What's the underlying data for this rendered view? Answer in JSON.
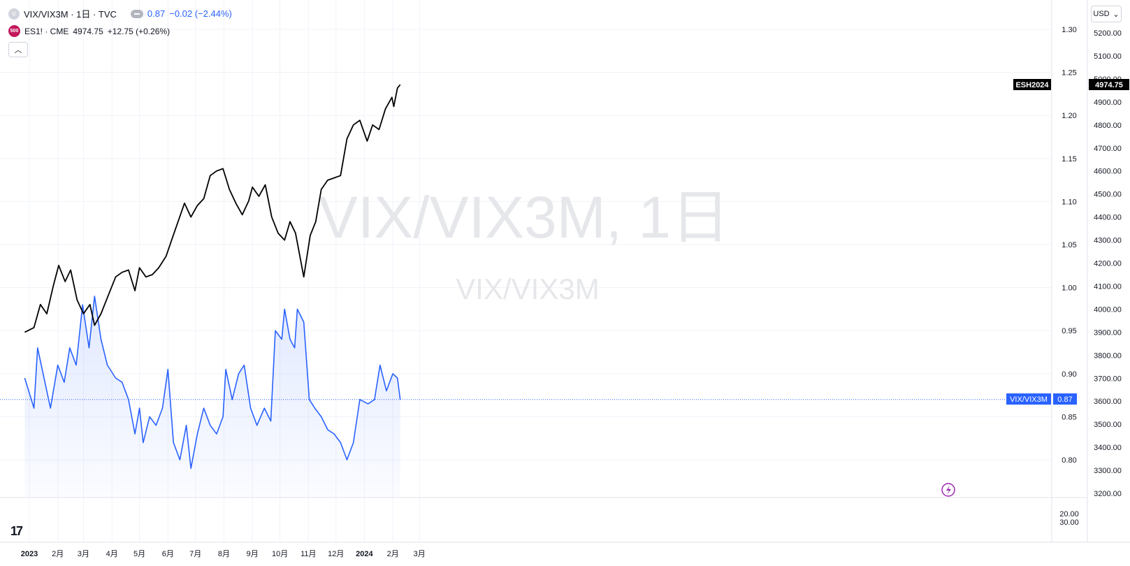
{
  "legend": {
    "main_symbol": "VIX/VIX3M · 1日 · TVC",
    "main_icon": "V",
    "main_value": "0.87",
    "main_change": "−0.02 (−2.44%)",
    "compare_icon": "500",
    "compare_symbol": "ES1! · CME",
    "compare_value": "4974.75",
    "compare_change": "+12.75 (+0.26%)"
  },
  "currency_button": "USD",
  "watermark": {
    "main": "VIX/VIX3M, 1日",
    "sub": "VIX/VIX3M"
  },
  "labels": {
    "es_tag": "ESH2024",
    "es_price": "4974.75",
    "vix_tag": "VIX/VIX3M",
    "vix_price": "0.87"
  },
  "tv_logo": "17",
  "colors": {
    "vix_line": "#2962ff",
    "es_line": "#000000",
    "grid": "#f0f3fa"
  },
  "chart_data": {
    "type": "line",
    "x_ticks": [
      "2023",
      "2月",
      "3月",
      "4月",
      "5月",
      "6月",
      "7月",
      "8月",
      "9月",
      "10月",
      "11月",
      "12月",
      "2024",
      "2月",
      "3月"
    ],
    "x_tick_dates": [
      "2023-01-01",
      "2023-02-01",
      "2023-03-01",
      "2023-04-01",
      "2023-05-01",
      "2023-06-01",
      "2023-07-01",
      "2023-08-01",
      "2023-09-01",
      "2023-10-01",
      "2023-11-01",
      "2023-12-01",
      "2024-01-01",
      "2024-02-01",
      "2024-03-01"
    ],
    "y_left_ticks": [
      "1.30",
      "1.25",
      "1.20",
      "1.15",
      "1.10",
      "1.05",
      "1.00",
      "0.95",
      "0.90",
      "0.85",
      "0.80"
    ],
    "y_left_range": [
      0.8,
      1.3
    ],
    "y_right_ticks": [
      "5200.00",
      "5100.00",
      "5000.00",
      "4900.00",
      "4800.00",
      "4700.00",
      "4600.00",
      "4500.00",
      "4400.00",
      "4300.00",
      "4200.00",
      "4100.00",
      "4000.00",
      "3900.00",
      "3800.00",
      "3700.00",
      "3600.00",
      "3500.00",
      "3400.00",
      "3300.00",
      "3200.00"
    ],
    "y_right_range": [
      3200,
      5200
    ],
    "lower_pane_ticks": [
      "20.00",
      "30.00"
    ],
    "series": [
      {
        "name": "VIX/VIX3M",
        "axis": "left",
        "points": [
          [
            "2022-12-27",
            0.895
          ],
          [
            "2023-01-06",
            0.86
          ],
          [
            "2023-01-10",
            0.93
          ],
          [
            "2023-01-18",
            0.89
          ],
          [
            "2023-01-24",
            0.86
          ],
          [
            "2023-02-01",
            0.91
          ],
          [
            "2023-02-08",
            0.89
          ],
          [
            "2023-02-14",
            0.93
          ],
          [
            "2023-02-21",
            0.91
          ],
          [
            "2023-02-28",
            0.98
          ],
          [
            "2023-03-07",
            0.93
          ],
          [
            "2023-03-13",
            0.99
          ],
          [
            "2023-03-20",
            0.94
          ],
          [
            "2023-03-27",
            0.91
          ],
          [
            "2023-04-05",
            0.895
          ],
          [
            "2023-04-12",
            0.89
          ],
          [
            "2023-04-19",
            0.87
          ],
          [
            "2023-04-26",
            0.83
          ],
          [
            "2023-05-01",
            0.86
          ],
          [
            "2023-05-05",
            0.82
          ],
          [
            "2023-05-12",
            0.85
          ],
          [
            "2023-05-19",
            0.84
          ],
          [
            "2023-05-26",
            0.86
          ],
          [
            "2023-06-01",
            0.905
          ],
          [
            "2023-06-07",
            0.82
          ],
          [
            "2023-06-14",
            0.8
          ],
          [
            "2023-06-21",
            0.84
          ],
          [
            "2023-06-26",
            0.79
          ],
          [
            "2023-07-03",
            0.83
          ],
          [
            "2023-07-10",
            0.86
          ],
          [
            "2023-07-17",
            0.84
          ],
          [
            "2023-07-24",
            0.83
          ],
          [
            "2023-07-31",
            0.85
          ],
          [
            "2023-08-03",
            0.905
          ],
          [
            "2023-08-10",
            0.87
          ],
          [
            "2023-08-17",
            0.9
          ],
          [
            "2023-08-23",
            0.91
          ],
          [
            "2023-08-30",
            0.86
          ],
          [
            "2023-09-06",
            0.84
          ],
          [
            "2023-09-14",
            0.86
          ],
          [
            "2023-09-21",
            0.845
          ],
          [
            "2023-09-26",
            0.95
          ],
          [
            "2023-10-03",
            0.94
          ],
          [
            "2023-10-06",
            0.975
          ],
          [
            "2023-10-12",
            0.94
          ],
          [
            "2023-10-17",
            0.93
          ],
          [
            "2023-10-20",
            0.975
          ],
          [
            "2023-10-27",
            0.96
          ],
          [
            "2023-11-02",
            0.87
          ],
          [
            "2023-11-08",
            0.86
          ],
          [
            "2023-11-15",
            0.85
          ],
          [
            "2023-11-22",
            0.835
          ],
          [
            "2023-11-29",
            0.83
          ],
          [
            "2023-12-06",
            0.82
          ],
          [
            "2023-12-13",
            0.8
          ],
          [
            "2023-12-20",
            0.82
          ],
          [
            "2023-12-27",
            0.87
          ],
          [
            "2024-01-05",
            0.865
          ],
          [
            "2024-01-12",
            0.87
          ],
          [
            "2024-01-18",
            0.91
          ],
          [
            "2024-01-25",
            0.88
          ],
          [
            "2024-02-01",
            0.9
          ],
          [
            "2024-02-06",
            0.895
          ],
          [
            "2024-02-09",
            0.87
          ]
        ]
      },
      {
        "name": "ES1!",
        "axis": "right",
        "points": [
          [
            "2022-12-27",
            3900
          ],
          [
            "2023-01-06",
            3920
          ],
          [
            "2023-01-13",
            4020
          ],
          [
            "2023-01-20",
            3980
          ],
          [
            "2023-01-27",
            4100
          ],
          [
            "2023-02-02",
            4190
          ],
          [
            "2023-02-09",
            4120
          ],
          [
            "2023-02-15",
            4170
          ],
          [
            "2023-02-22",
            4040
          ],
          [
            "2023-03-01",
            3980
          ],
          [
            "2023-03-08",
            4020
          ],
          [
            "2023-03-13",
            3930
          ],
          [
            "2023-03-20",
            3980
          ],
          [
            "2023-03-28",
            4060
          ],
          [
            "2023-04-05",
            4140
          ],
          [
            "2023-04-12",
            4160
          ],
          [
            "2023-04-19",
            4170
          ],
          [
            "2023-04-26",
            4080
          ],
          [
            "2023-05-01",
            4180
          ],
          [
            "2023-05-08",
            4140
          ],
          [
            "2023-05-15",
            4150
          ],
          [
            "2023-05-22",
            4180
          ],
          [
            "2023-05-30",
            4230
          ],
          [
            "2023-06-05",
            4300
          ],
          [
            "2023-06-12",
            4380
          ],
          [
            "2023-06-19",
            4460
          ],
          [
            "2023-06-26",
            4400
          ],
          [
            "2023-07-03",
            4450
          ],
          [
            "2023-07-10",
            4480
          ],
          [
            "2023-07-17",
            4580
          ],
          [
            "2023-07-24",
            4600
          ],
          [
            "2023-07-31",
            4610
          ],
          [
            "2023-08-07",
            4520
          ],
          [
            "2023-08-14",
            4460
          ],
          [
            "2023-08-21",
            4410
          ],
          [
            "2023-08-28",
            4470
          ],
          [
            "2023-09-01",
            4530
          ],
          [
            "2023-09-08",
            4490
          ],
          [
            "2023-09-15",
            4540
          ],
          [
            "2023-09-22",
            4400
          ],
          [
            "2023-09-29",
            4330
          ],
          [
            "2023-10-06",
            4300
          ],
          [
            "2023-10-12",
            4380
          ],
          [
            "2023-10-18",
            4330
          ],
          [
            "2023-10-27",
            4140
          ],
          [
            "2023-11-03",
            4320
          ],
          [
            "2023-11-09",
            4380
          ],
          [
            "2023-11-15",
            4520
          ],
          [
            "2023-11-22",
            4560
          ],
          [
            "2023-11-29",
            4570
          ],
          [
            "2023-12-06",
            4580
          ],
          [
            "2023-12-13",
            4740
          ],
          [
            "2023-12-20",
            4800
          ],
          [
            "2023-12-27",
            4820
          ],
          [
            "2024-01-04",
            4730
          ],
          [
            "2024-01-10",
            4800
          ],
          [
            "2024-01-17",
            4780
          ],
          [
            "2024-01-24",
            4870
          ],
          [
            "2024-01-31",
            4920
          ],
          [
            "2024-02-02",
            4880
          ],
          [
            "2024-02-06",
            4960
          ],
          [
            "2024-02-09",
            4974.75
          ]
        ]
      }
    ]
  }
}
